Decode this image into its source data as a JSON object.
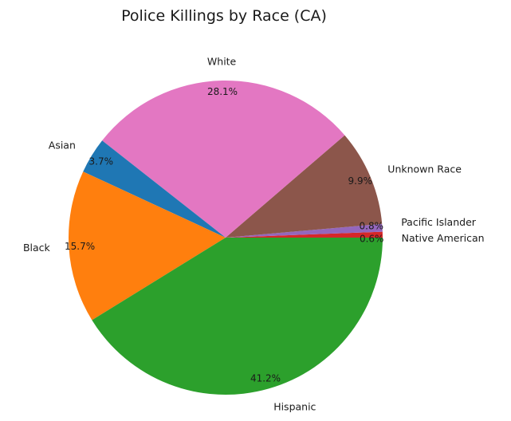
{
  "chart_data": {
    "type": "pie",
    "title": "Police Killings by Race (CA)",
    "start_angle_deg": 0,
    "direction": "counterclockwise",
    "slices": [
      {
        "label": "Native American",
        "value": 0.6,
        "pct_label": "0.6%",
        "color": "#d62728"
      },
      {
        "label": "Pacific Islander",
        "value": 0.8,
        "pct_label": "0.8%",
        "color": "#9467bd"
      },
      {
        "label": "Unknown Race",
        "value": 9.9,
        "pct_label": "9.9%",
        "color": "#8c564b"
      },
      {
        "label": "White",
        "value": 28.1,
        "pct_label": "28.1%",
        "color": "#e377c2"
      },
      {
        "label": "Asian",
        "value": 3.7,
        "pct_label": "3.7%",
        "color": "#1f77b4"
      },
      {
        "label": "Black",
        "value": 15.7,
        "pct_label": "15.7%",
        "color": "#ff7f0e"
      },
      {
        "label": "Hispanic",
        "value": 41.2,
        "pct_label": "41.2%",
        "color": "#2ca02c"
      }
    ]
  }
}
